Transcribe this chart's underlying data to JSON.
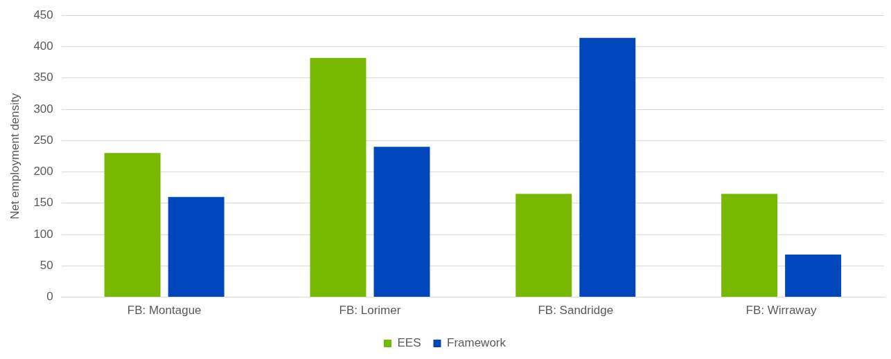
{
  "chart_data": {
    "type": "bar",
    "ylabel": "Net employment density",
    "categories": [
      "FB: Montague",
      "FB: Lorimer",
      "FB: Sandridge",
      "FB: Wirraway"
    ],
    "series": [
      {
        "name": "EES",
        "color": "#76b900",
        "values": [
          230,
          382,
          165,
          165
        ]
      },
      {
        "name": "Framework",
        "color": "#0047bb",
        "values": [
          160,
          240,
          414,
          68
        ]
      }
    ],
    "ylim": [
      0,
      450
    ],
    "yticks": [
      0,
      50,
      100,
      150,
      200,
      250,
      300,
      350,
      400,
      450
    ],
    "grid": "y",
    "legend": "bottom"
  }
}
